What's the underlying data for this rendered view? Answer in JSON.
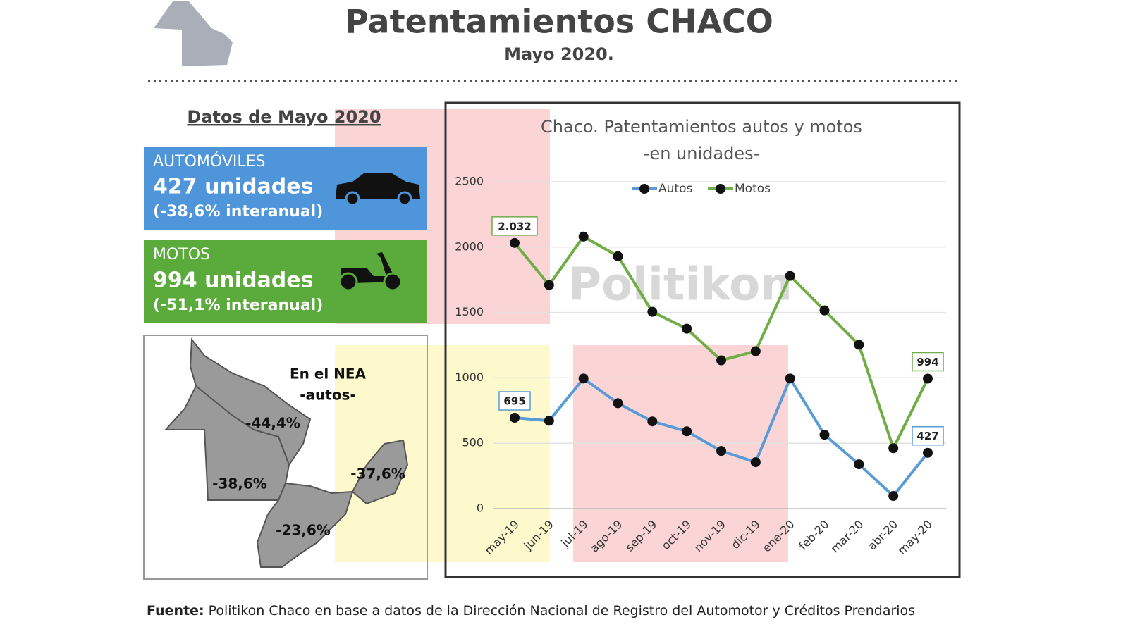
{
  "header": {
    "title": "Patentamientos CHACO",
    "subtitle": "Mayo 2020."
  },
  "section_title": "Datos de Mayo 2020",
  "cards": [
    {
      "label": "AUTOMÓVILES",
      "value": "427 unidades",
      "change": "(-38,6% interanual)"
    },
    {
      "label": "MOTOS",
      "value": "994 unidades",
      "change": "(-51,1% interanual)"
    }
  ],
  "map": {
    "title": "En el NEA",
    "subtitle": "-autos-",
    "regions": [
      "-44,4%",
      "-38,6%",
      "-37,6%",
      "-23,6%"
    ]
  },
  "watermark": "Politikon",
  "source": {
    "prefix": "Fuente:",
    "text": "Politikon Chaco en base a datos de la Dirección Nacional de Registro del Automotor y Créditos Prendarios"
  },
  "chart_data": {
    "type": "line",
    "title": "Chaco.  Patentamientos autos y motos",
    "subtitle": "-en unidades-",
    "categories": [
      "may-19",
      "jun-19",
      "jul-19",
      "ago-19",
      "sep-19",
      "oct-19",
      "nov-19",
      "dic-19",
      "ene-20",
      "feb-20",
      "mar-20",
      "abr-20",
      "may-20"
    ],
    "series": [
      {
        "name": "Autos",
        "color": "#5b9bd5",
        "values": [
          695,
          672,
          995,
          806,
          667,
          591,
          441,
          355,
          995,
          565,
          339,
          97,
          427
        ],
        "value_labels": [
          "695",
          null,
          null,
          null,
          null,
          null,
          null,
          null,
          null,
          null,
          null,
          null,
          "427"
        ]
      },
      {
        "name": "Motos",
        "color": "#70ad47",
        "values": [
          2032,
          1710,
          2081,
          1930,
          1505,
          1376,
          1134,
          1204,
          1780,
          1516,
          1253,
          462,
          994
        ],
        "value_labels": [
          "2.032",
          null,
          null,
          null,
          null,
          null,
          null,
          null,
          null,
          null,
          null,
          null,
          "994"
        ]
      }
    ],
    "ylim": [
      0,
      2500
    ],
    "yticks": [
      0,
      500,
      1000,
      1500,
      2000,
      2500
    ],
    "grid": true,
    "legend": "top"
  }
}
